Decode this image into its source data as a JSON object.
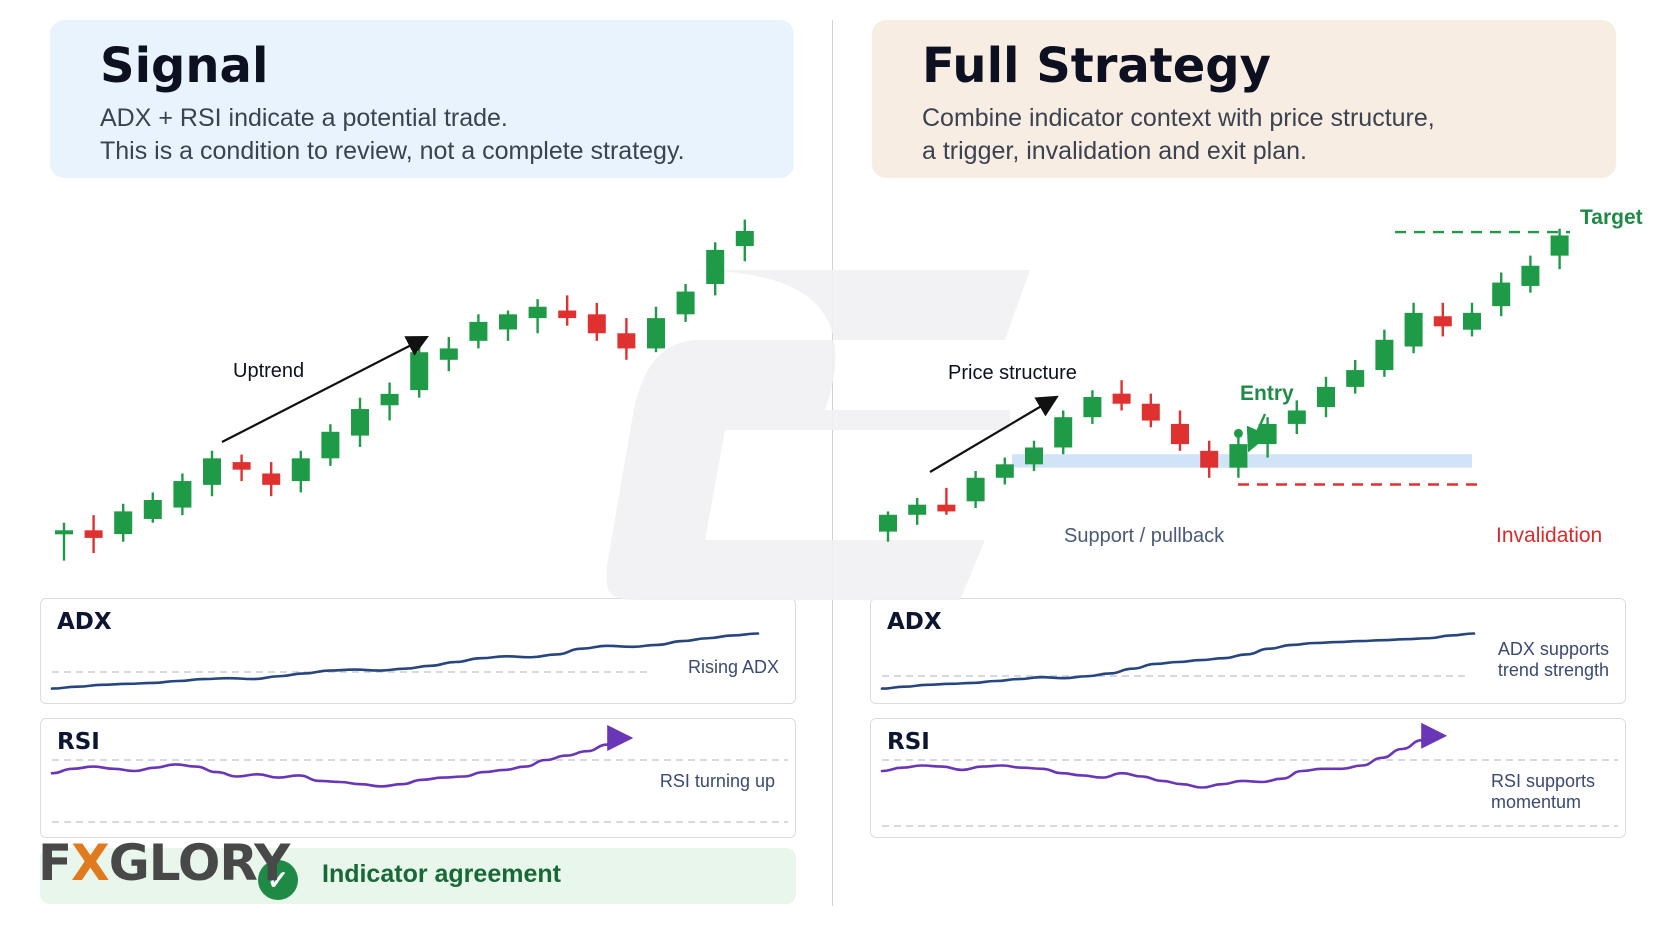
{
  "signal": {
    "title": "Signal",
    "subtitle_lines": [
      "ADX + RSI indicate a potential trade.",
      "This is a condition to review, not a complete strategy."
    ],
    "uptrend_label": "Uptrend",
    "adx_title": "ADX",
    "adx_note": "Rising ADX",
    "rsi_title": "RSI",
    "rsi_note": "RSI turning up",
    "agreement_label": "Indicator agreement"
  },
  "strategy": {
    "title": "Full Strategy",
    "subtitle_lines": [
      "Combine indicator context with price structure,",
      "a trigger, invalidation and exit plan."
    ],
    "price_structure_label": "Price structure",
    "entry_label": "Entry",
    "target_label": "Target",
    "support_label": "Support / pullback",
    "invalidation_label": "Invalidation",
    "adx_title": "ADX",
    "adx_note_lines": [
      "ADX supports",
      "trend strength"
    ],
    "rsi_title": "RSI",
    "rsi_note_lines": [
      "RSI supports",
      "momentum"
    ]
  },
  "logo": {
    "text_before": "F",
    "text_x": "X",
    "text_after": "GLORY"
  },
  "icons": {
    "check": "check-circle-icon",
    "arrow": "arrow-icon"
  },
  "colors": {
    "bull": "#1f9a47",
    "bear": "#e03131",
    "adx_line": "#27457e",
    "rsi_line": "#6a36b8",
    "target": "#1f9a47",
    "invalidation": "#e03131",
    "support_zone": "#c9def5"
  },
  "chart_data": [
    {
      "type": "candlestick",
      "name": "signal-price",
      "candles": [
        {
          "o": 10,
          "h": 13,
          "l": 3,
          "c": 11
        },
        {
          "o": 11,
          "h": 15,
          "l": 5,
          "c": 9
        },
        {
          "o": 10,
          "h": 18,
          "l": 8,
          "c": 16
        },
        {
          "o": 14,
          "h": 21,
          "l": 13,
          "c": 19
        },
        {
          "o": 17,
          "h": 26,
          "l": 15,
          "c": 24
        },
        {
          "o": 23,
          "h": 32,
          "l": 20,
          "c": 30
        },
        {
          "o": 29,
          "h": 31,
          "l": 24,
          "c": 27
        },
        {
          "o": 26,
          "h": 29,
          "l": 20,
          "c": 23
        },
        {
          "o": 24,
          "h": 32,
          "l": 21,
          "c": 30
        },
        {
          "o": 30,
          "h": 39,
          "l": 28,
          "c": 37
        },
        {
          "o": 36,
          "h": 46,
          "l": 33,
          "c": 43
        },
        {
          "o": 44,
          "h": 50,
          "l": 40,
          "c": 47
        },
        {
          "o": 48,
          "h": 60,
          "l": 46,
          "c": 58
        },
        {
          "o": 56,
          "h": 62,
          "l": 53,
          "c": 59
        },
        {
          "o": 61,
          "h": 68,
          "l": 59,
          "c": 66
        },
        {
          "o": 64,
          "h": 69,
          "l": 61,
          "c": 68
        },
        {
          "o": 67,
          "h": 72,
          "l": 63,
          "c": 70
        },
        {
          "o": 69,
          "h": 73,
          "l": 65,
          "c": 67
        },
        {
          "o": 68,
          "h": 71,
          "l": 61,
          "c": 63
        },
        {
          "o": 63,
          "h": 67,
          "l": 56,
          "c": 59
        },
        {
          "o": 59,
          "h": 70,
          "l": 58,
          "c": 67
        },
        {
          "o": 68,
          "h": 76,
          "l": 66,
          "c": 74
        },
        {
          "o": 76,
          "h": 87,
          "l": 73,
          "c": 85
        },
        {
          "o": 86,
          "h": 93,
          "l": 82,
          "c": 90
        }
      ]
    },
    {
      "type": "candlestick",
      "name": "strategy-price",
      "candles": [
        {
          "o": 12,
          "h": 18,
          "l": 9,
          "c": 17
        },
        {
          "o": 17,
          "h": 22,
          "l": 14,
          "c": 20
        },
        {
          "o": 20,
          "h": 25,
          "l": 17,
          "c": 18
        },
        {
          "o": 21,
          "h": 30,
          "l": 19,
          "c": 28
        },
        {
          "o": 28,
          "h": 34,
          "l": 26,
          "c": 32
        },
        {
          "o": 32,
          "h": 39,
          "l": 30,
          "c": 37
        },
        {
          "o": 37,
          "h": 48,
          "l": 35,
          "c": 46
        },
        {
          "o": 46,
          "h": 54,
          "l": 44,
          "c": 52
        },
        {
          "o": 53,
          "h": 57,
          "l": 48,
          "c": 50
        },
        {
          "o": 50,
          "h": 53,
          "l": 43,
          "c": 45
        },
        {
          "o": 44,
          "h": 48,
          "l": 36,
          "c": 38
        },
        {
          "o": 36,
          "h": 39,
          "l": 28,
          "c": 31
        },
        {
          "o": 31,
          "h": 40,
          "l": 28,
          "c": 38
        },
        {
          "o": 38,
          "h": 46,
          "l": 34,
          "c": 44
        },
        {
          "o": 44,
          "h": 51,
          "l": 41,
          "c": 48
        },
        {
          "o": 49,
          "h": 58,
          "l": 46,
          "c": 55
        },
        {
          "o": 55,
          "h": 63,
          "l": 53,
          "c": 60
        },
        {
          "o": 60,
          "h": 72,
          "l": 58,
          "c": 69
        },
        {
          "o": 67,
          "h": 80,
          "l": 65,
          "c": 77
        },
        {
          "o": 76,
          "h": 80,
          "l": 70,
          "c": 73
        },
        {
          "o": 72,
          "h": 80,
          "l": 70,
          "c": 77
        },
        {
          "o": 79,
          "h": 89,
          "l": 76,
          "c": 86
        },
        {
          "o": 85,
          "h": 94,
          "l": 83,
          "c": 91
        },
        {
          "o": 94,
          "h": 102,
          "l": 90,
          "c": 100
        }
      ],
      "target_level": 101,
      "invalidation_level": 26,
      "support_zone": [
        31,
        35
      ],
      "entry_candle": 12
    },
    {
      "type": "line",
      "name": "signal-adx",
      "values": [
        12,
        14,
        16,
        17,
        18,
        20,
        22,
        23,
        22,
        25,
        28,
        31,
        32,
        31,
        33,
        36,
        40,
        44,
        46,
        45,
        48,
        54,
        57,
        56,
        58,
        62,
        65,
        68,
        70
      ]
    },
    {
      "type": "line",
      "name": "signal-rsi",
      "values": [
        48,
        52,
        54,
        52,
        50,
        53,
        56,
        54,
        49,
        45,
        47,
        44,
        46,
        41,
        40,
        38,
        36,
        38,
        42,
        44,
        45,
        49,
        51,
        54,
        60,
        64,
        68,
        74,
        80
      ]
    },
    {
      "type": "line",
      "name": "strategy-adx",
      "values": [
        12,
        14,
        16,
        17,
        18,
        20,
        22,
        24,
        23,
        25,
        28,
        33,
        38,
        40,
        42,
        44,
        48,
        54,
        58,
        60,
        61,
        62,
        63,
        64,
        65,
        68,
        70
      ]
    },
    {
      "type": "line",
      "name": "strategy-rsi",
      "values": [
        50,
        53,
        55,
        54,
        51,
        54,
        55,
        53,
        52,
        48,
        46,
        44,
        48,
        45,
        41,
        38,
        35,
        38,
        41,
        40,
        43,
        50,
        52,
        52,
        55,
        62,
        70,
        78,
        82
      ]
    }
  ]
}
